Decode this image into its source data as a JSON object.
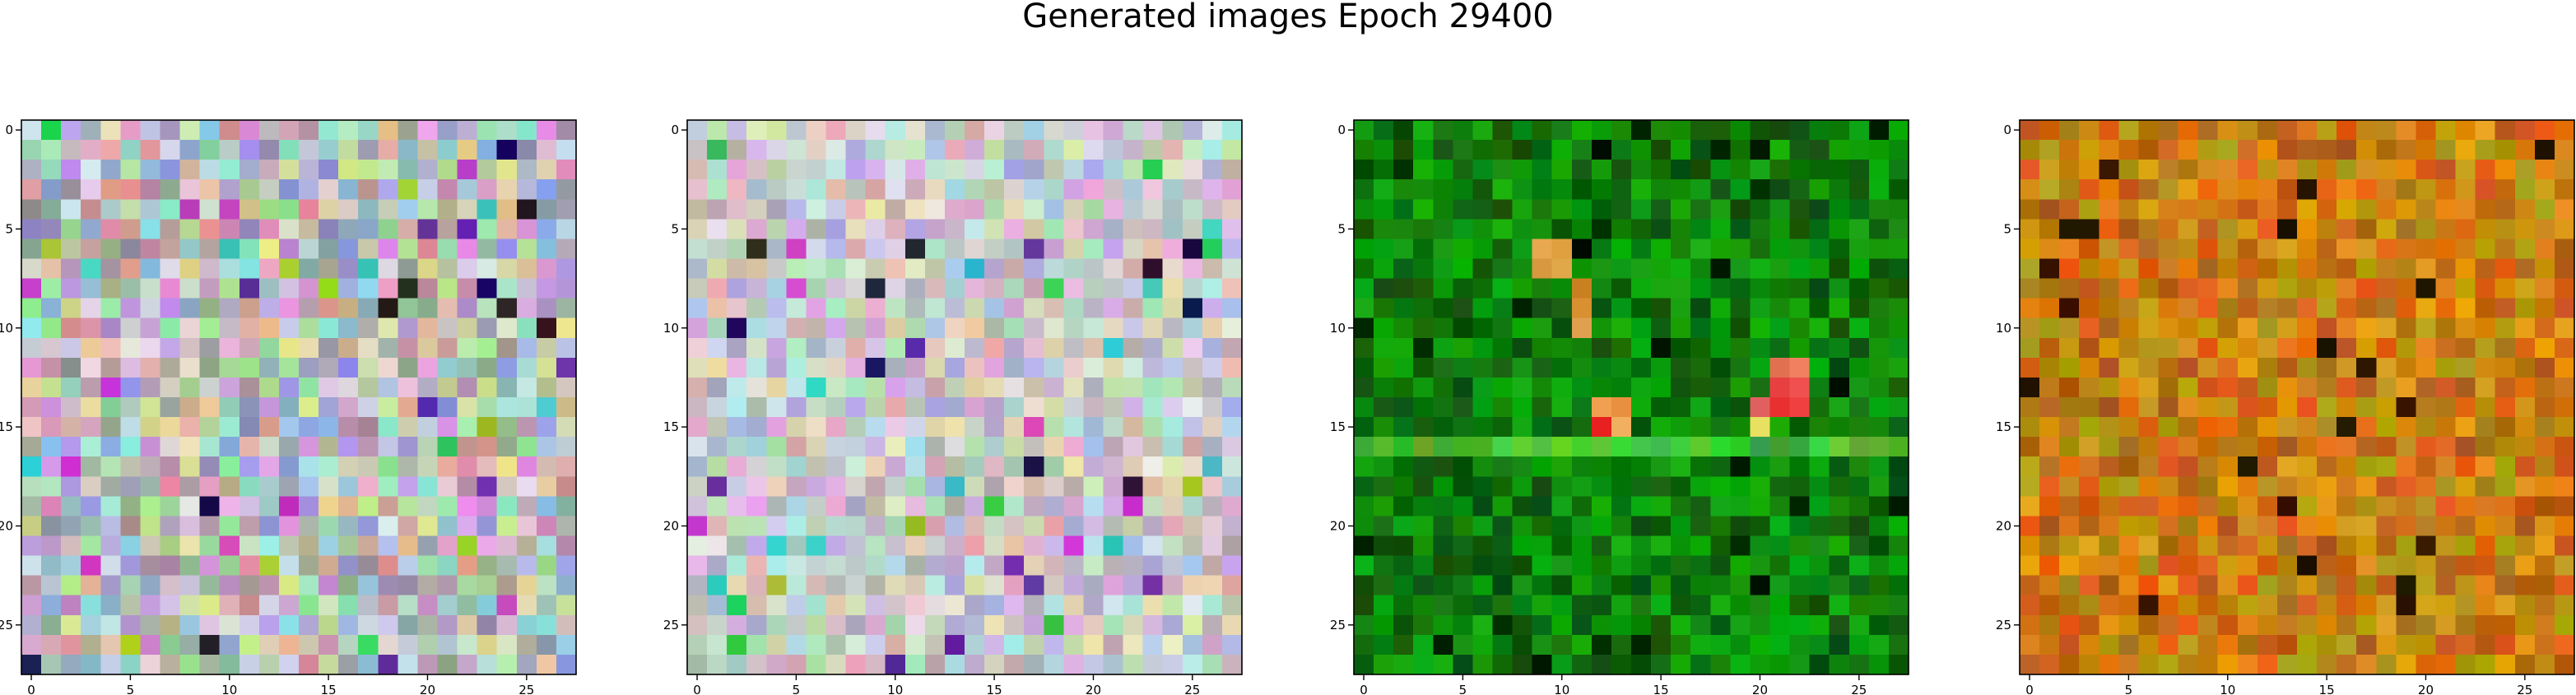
{
  "figure": {
    "title": "Generated images Epoch 29400"
  },
  "chart_data": [
    {
      "type": "heatmap",
      "title": "",
      "xlabel": "",
      "ylabel": "",
      "grid": false,
      "xlim": [
        -0.5,
        27.5
      ],
      "ylim": [
        27.5,
        -0.5
      ],
      "x_ticks": [
        0,
        5,
        10,
        15,
        20,
        25
      ],
      "y_ticks": [
        0,
        5,
        10,
        15,
        20,
        25
      ],
      "x_tick_labels": [
        "0",
        "5",
        "10",
        "15",
        "20",
        "25"
      ],
      "y_tick_labels": [
        "0",
        "5",
        "10",
        "15",
        "20",
        "25"
      ],
      "shape": [
        28,
        28
      ],
      "palette": "pastel-noise",
      "dominant_colors": [
        "#c8c8c8",
        "#a0d8c0",
        "#c8a0d0",
        "#b0c8e0",
        "#e0d0e0"
      ]
    },
    {
      "type": "heatmap",
      "title": "",
      "xlabel": "",
      "ylabel": "",
      "grid": false,
      "xlim": [
        -0.5,
        27.5
      ],
      "ylim": [
        27.5,
        -0.5
      ],
      "x_ticks": [
        0,
        5,
        10,
        15,
        20,
        25
      ],
      "y_ticks": [
        0,
        5,
        10,
        15,
        20,
        25
      ],
      "x_tick_labels": [
        "0",
        "5",
        "10",
        "15",
        "20",
        "25"
      ],
      "y_tick_labels": [
        "0",
        "5",
        "10",
        "15",
        "20",
        "25"
      ],
      "shape": [
        28,
        28
      ],
      "palette": "pastel-light",
      "dominant_colors": [
        "#d8d8d8",
        "#c8e8d8",
        "#d8c0e0",
        "#c0d0e8",
        "#e8e0e8"
      ]
    },
    {
      "type": "heatmap",
      "title": "",
      "xlabel": "",
      "ylabel": "",
      "grid": false,
      "xlim": [
        -0.5,
        27.5
      ],
      "ylim": [
        27.5,
        -0.5
      ],
      "x_ticks": [
        0,
        5,
        10,
        15,
        20,
        25
      ],
      "y_ticks": [
        0,
        5,
        10,
        15,
        20,
        25
      ],
      "x_tick_labels": [
        "0",
        "5",
        "10",
        "15",
        "20",
        "25"
      ],
      "y_tick_labels": [
        "0",
        "5",
        "10",
        "15",
        "20",
        "25"
      ],
      "shape": [
        28,
        28
      ],
      "palette": "green",
      "dominant_colors": [
        "#0a6e0a",
        "#128c12",
        "#0a5a0a",
        "#2aa82a",
        "#e03030",
        "#e8a040"
      ]
    },
    {
      "type": "heatmap",
      "title": "",
      "xlabel": "",
      "ylabel": "",
      "grid": false,
      "xlim": [
        -0.5,
        27.5
      ],
      "ylim": [
        27.5,
        -0.5
      ],
      "x_ticks": [
        0,
        5,
        10,
        15,
        20,
        25
      ],
      "y_ticks": [
        0,
        5,
        10,
        15,
        20,
        25
      ],
      "x_tick_labels": [
        "0",
        "5",
        "10",
        "15",
        "20",
        "25"
      ],
      "y_tick_labels": [
        "0",
        "5",
        "10",
        "15",
        "20",
        "25"
      ],
      "shape": [
        28,
        28
      ],
      "palette": "orange",
      "dominant_colors": [
        "#c87818",
        "#d89020",
        "#a86010",
        "#b89010",
        "#e0a030"
      ]
    }
  ]
}
